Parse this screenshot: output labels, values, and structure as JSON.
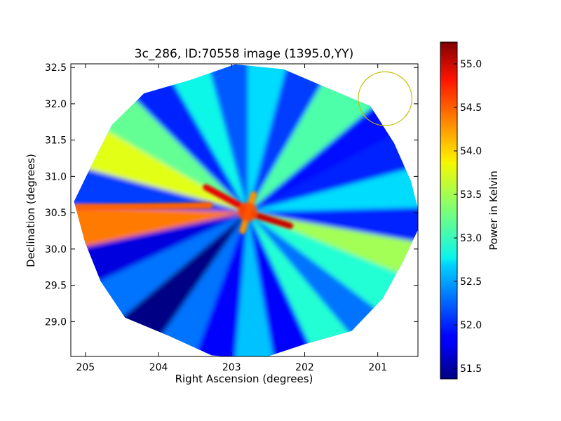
{
  "chart_data": {
    "type": "heatmap",
    "title": "3c_286, ID:70558 image (1395.0,YY)",
    "xlabel": "Right Ascension (degrees)",
    "ylabel": "Declination (degrees)",
    "xlim": [
      205.2,
      200.45
    ],
    "ylim": [
      28.52,
      32.55
    ],
    "x_inverted": true,
    "xticks": [
      205,
      204,
      203,
      202,
      201
    ],
    "yticks": [
      29.0,
      29.5,
      30.0,
      30.5,
      31.0,
      31.5,
      32.0,
      32.5
    ],
    "grid": false,
    "colormap": "jet",
    "colorbar": {
      "label": "Power in Kelvin",
      "range": [
        51.38,
        55.25
      ],
      "ticks": [
        51.5,
        52.0,
        52.5,
        53.0,
        53.5,
        54.0,
        54.5,
        55.0
      ]
    },
    "source_center": {
      "ra": 202.78,
      "dec": 30.51
    },
    "footprint_radius_deg": 2.0,
    "beam_marker": {
      "ra": 200.9,
      "dec": 32.07,
      "radius_deg": 0.37,
      "color": "#bfbf00"
    },
    "background_level": 52.4,
    "radial_spokes": [
      {
        "angle_deg": 0,
        "value": 52.7
      },
      {
        "angle_deg": 15,
        "value": 52.0
      },
      {
        "angle_deg": 28,
        "value": 51.9
      },
      {
        "angle_deg": 40,
        "value": 53.1
      },
      {
        "angle_deg": 60,
        "value": 52.1
      },
      {
        "angle_deg": 75,
        "value": 52.7
      },
      {
        "angle_deg": 90,
        "value": 52.2
      },
      {
        "angle_deg": 105,
        "value": 52.8
      },
      {
        "angle_deg": 120,
        "value": 52.0
      },
      {
        "angle_deg": 135,
        "value": 53.2
      },
      {
        "angle_deg": 150,
        "value": 53.8
      },
      {
        "angle_deg": 165,
        "value": 52.1
      },
      {
        "angle_deg": 178,
        "value": 54.4
      },
      {
        "angle_deg": 192,
        "value": 51.7
      },
      {
        "angle_deg": 205,
        "value": 52.3
      },
      {
        "angle_deg": 220,
        "value": 51.4
      },
      {
        "angle_deg": 235,
        "value": 52.3
      },
      {
        "angle_deg": 250,
        "value": 51.8
      },
      {
        "angle_deg": 265,
        "value": 52.6
      },
      {
        "angle_deg": 280,
        "value": 51.8
      },
      {
        "angle_deg": 295,
        "value": 52.9
      },
      {
        "angle_deg": 310,
        "value": 52.3
      },
      {
        "angle_deg": 323,
        "value": 52.9
      },
      {
        "angle_deg": 338,
        "value": 53.5
      },
      {
        "angle_deg": 350,
        "value": 52.0
      }
    ],
    "hot_streaks": [
      {
        "ra_start": 202.2,
        "dec_start": 30.32,
        "ra_end": 202.85,
        "dec_end": 30.52,
        "value": 55.0
      },
      {
        "ra_start": 203.35,
        "dec_start": 30.85,
        "ra_end": 202.8,
        "dec_end": 30.55,
        "value": 54.9
      },
      {
        "ra_start": 205.1,
        "dec_start": 30.57,
        "ra_end": 203.3,
        "dec_end": 30.6,
        "value": 54.5
      },
      {
        "ra_start": 202.85,
        "dec_start": 30.25,
        "ra_end": 202.7,
        "dec_end": 30.75,
        "value": 54.3
      }
    ]
  }
}
